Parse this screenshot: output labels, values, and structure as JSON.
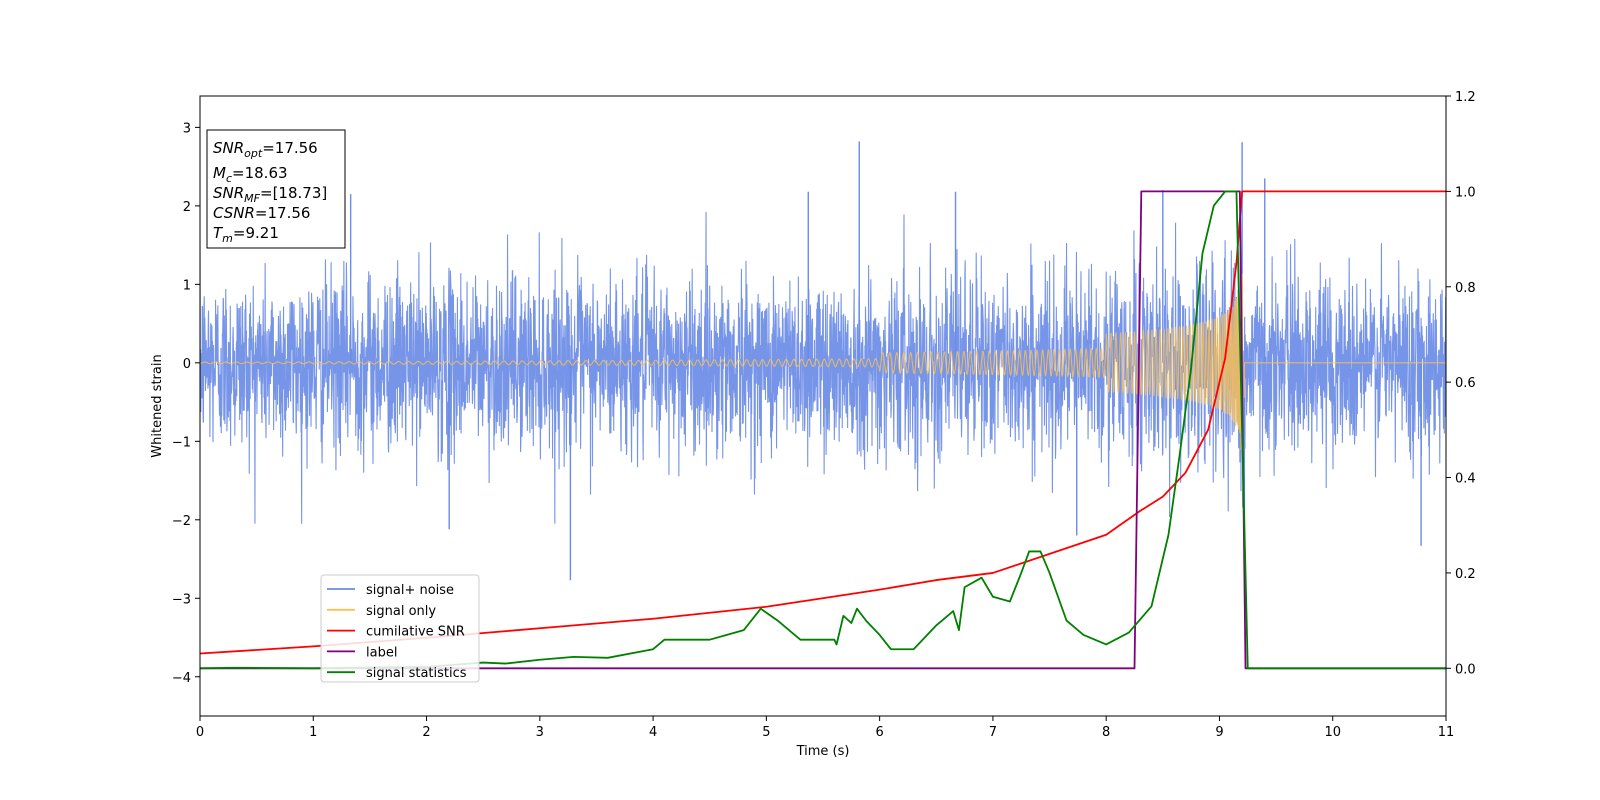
{
  "chart_data": {
    "type": "line",
    "xlabel": "Time (s)",
    "ylabel": "Whitened strain",
    "xlim": [
      0,
      11
    ],
    "ylim": [
      -4.5,
      3.4
    ],
    "y2lim": [
      -0.1,
      1.2
    ],
    "xticks": [
      "0",
      "1",
      "2",
      "3",
      "4",
      "5",
      "6",
      "7",
      "8",
      "9",
      "10",
      "11"
    ],
    "yticks": [
      {
        "v": -4,
        "label": "−4"
      },
      {
        "v": -3,
        "label": "−3"
      },
      {
        "v": -2,
        "label": "−2"
      },
      {
        "v": -1,
        "label": "−1"
      },
      {
        "v": 0,
        "label": "0"
      },
      {
        "v": 1,
        "label": "1"
      },
      {
        "v": 2,
        "label": "2"
      },
      {
        "v": 3,
        "label": "3"
      }
    ],
    "y2ticks": [
      {
        "v": 0.0,
        "label": "0.0"
      },
      {
        "v": 0.2,
        "label": "0.2"
      },
      {
        "v": 0.4,
        "label": "0.4"
      },
      {
        "v": 0.6,
        "label": "0.6"
      },
      {
        "v": 0.8,
        "label": "0.8"
      },
      {
        "v": 1.0,
        "label": "1.0"
      },
      {
        "v": 1.2,
        "label": "1.2"
      }
    ],
    "grid": false,
    "legend": {
      "placement": "lower-left",
      "entries": [
        {
          "key": "noise",
          "label": "signal+ noise",
          "color": "#6a8be6"
        },
        {
          "key": "signal",
          "label": "signal only",
          "color": "#ffc04d"
        },
        {
          "key": "csnr",
          "label": "cumilative SNR",
          "color": "#ff0000"
        },
        {
          "key": "label",
          "label": "label",
          "color": "#800080"
        },
        {
          "key": "stat",
          "label": "signal statistics",
          "color": "#008000"
        }
      ]
    },
    "info_box": [
      {
        "sym": "SNR",
        "sub": "opt",
        "value": "=17.56"
      },
      {
        "sym": "M",
        "sub": "c",
        "value": "=18.63"
      },
      {
        "sym": "SNR",
        "sub": "MF",
        "value": "=[18.73]"
      },
      {
        "sym": "CSNR",
        "sub": "",
        "value": "=17.56"
      },
      {
        "sym": "T",
        "sub": "m",
        "value": "=9.21"
      }
    ],
    "series": [
      {
        "key": "noise",
        "name": "signal+ noise",
        "color": "#6a8be6",
        "axis": "left",
        "generated": "whitened gaussian noise, sigma≈0.55, plus injected chirp signal",
        "noise_sigma": 0.55,
        "spikes": [
          {
            "x": 3.27,
            "y": -2.77
          },
          {
            "x": 5.82,
            "y": 2.82
          },
          {
            "x": 9.2,
            "y": 2.81
          },
          {
            "x": 9.4,
            "y": 2.35
          },
          {
            "x": 2.2,
            "y": -2.12
          },
          {
            "x": 7.74,
            "y": -2.2
          },
          {
            "x": 10.78,
            "y": -2.33
          },
          {
            "x": 9.22,
            "y": -2.53
          },
          {
            "x": 8.5,
            "y": 2.2
          },
          {
            "x": 5.37,
            "y": 2.18
          },
          {
            "x": 6.67,
            "y": 2.18
          },
          {
            "x": 1.33,
            "y": 2.15
          }
        ]
      },
      {
        "key": "signal",
        "name": "signal only",
        "color": "#ffc04d",
        "axis": "left",
        "chirp": {
          "t_merge": 9.21,
          "amp_start": 0.01,
          "amp_peak": 1.3,
          "ring_down_to": 9.22
        }
      },
      {
        "key": "csnr",
        "name": "cumilative SNR",
        "color": "#ff0000",
        "axis": "right",
        "points": [
          [
            0,
            0.031
          ],
          [
            1,
            0.046
          ],
          [
            2,
            0.064
          ],
          [
            3,
            0.084
          ],
          [
            4,
            0.104
          ],
          [
            5,
            0.129
          ],
          [
            6,
            0.165
          ],
          [
            6.5,
            0.185
          ],
          [
            7,
            0.2
          ],
          [
            7.5,
            0.24
          ],
          [
            8,
            0.28
          ],
          [
            8.3,
            0.33
          ],
          [
            8.5,
            0.36
          ],
          [
            8.7,
            0.41
          ],
          [
            8.9,
            0.5
          ],
          [
            9.05,
            0.65
          ],
          [
            9.15,
            0.85
          ],
          [
            9.2,
            1.0
          ],
          [
            11,
            1.0
          ]
        ]
      },
      {
        "key": "label",
        "name": "label",
        "color": "#800080",
        "axis": "right",
        "points": [
          [
            0,
            0
          ],
          [
            8.25,
            0
          ],
          [
            8.31,
            1.0
          ],
          [
            9.18,
            1.0
          ],
          [
            9.23,
            0
          ],
          [
            11,
            0
          ]
        ]
      },
      {
        "key": "stat",
        "name": "signal statistics",
        "color": "#008000",
        "axis": "right",
        "points": [
          [
            0,
            0.0
          ],
          [
            0.3,
            0.001
          ],
          [
            1,
            0.0
          ],
          [
            1.5,
            0.002
          ],
          [
            2,
            0.003
          ],
          [
            2.5,
            0.012
          ],
          [
            2.7,
            0.01
          ],
          [
            3,
            0.018
          ],
          [
            3.3,
            0.024
          ],
          [
            3.6,
            0.022
          ],
          [
            4,
            0.04
          ],
          [
            4.1,
            0.06
          ],
          [
            4.5,
            0.06
          ],
          [
            4.8,
            0.08
          ],
          [
            4.95,
            0.125
          ],
          [
            5.1,
            0.1
          ],
          [
            5.3,
            0.06
          ],
          [
            5.6,
            0.06
          ],
          [
            5.62,
            0.05
          ],
          [
            5.68,
            0.11
          ],
          [
            5.75,
            0.095
          ],
          [
            5.8,
            0.125
          ],
          [
            5.88,
            0.1
          ],
          [
            6.0,
            0.07
          ],
          [
            6.1,
            0.04
          ],
          [
            6.3,
            0.04
          ],
          [
            6.5,
            0.09
          ],
          [
            6.65,
            0.12
          ],
          [
            6.7,
            0.08
          ],
          [
            6.75,
            0.17
          ],
          [
            6.9,
            0.19
          ],
          [
            7.0,
            0.15
          ],
          [
            7.15,
            0.14
          ],
          [
            7.25,
            0.2
          ],
          [
            7.32,
            0.245
          ],
          [
            7.42,
            0.245
          ],
          [
            7.5,
            0.2
          ],
          [
            7.65,
            0.1
          ],
          [
            7.8,
            0.07
          ],
          [
            8.0,
            0.05
          ],
          [
            8.2,
            0.075
          ],
          [
            8.4,
            0.13
          ],
          [
            8.55,
            0.28
          ],
          [
            8.65,
            0.45
          ],
          [
            8.75,
            0.63
          ],
          [
            8.85,
            0.87
          ],
          [
            8.95,
            0.97
          ],
          [
            9.05,
            1.0
          ],
          [
            9.15,
            1.0
          ],
          [
            9.25,
            0.0
          ],
          [
            11,
            0.0
          ]
        ]
      }
    ]
  }
}
